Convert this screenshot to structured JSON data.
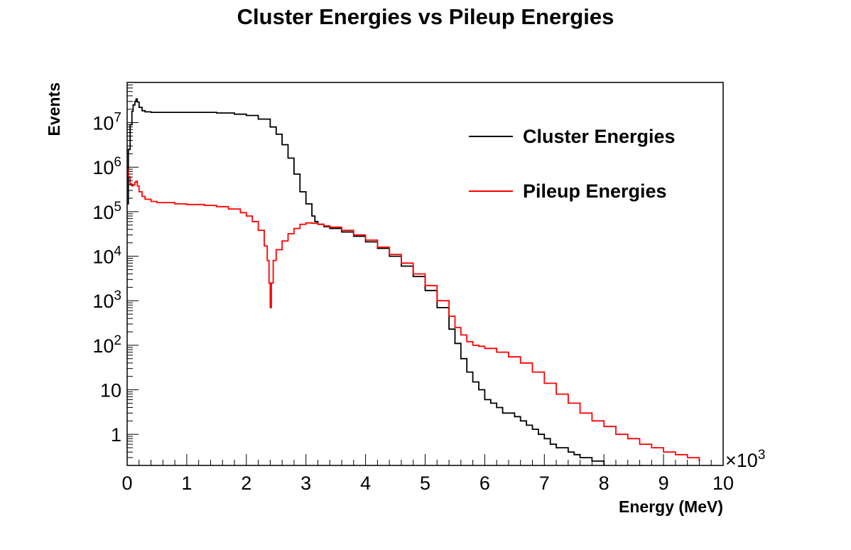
{
  "chart_data": {
    "type": "line",
    "title": "Cluster Energies vs Pileup Energies",
    "xlabel": "Energy (MeV)",
    "ylabel": "Events",
    "x_multiplier_label": "×10",
    "x_multiplier_exp": "3",
    "xlim": [
      0,
      10000
    ],
    "ylim": [
      0.2,
      80000000
    ],
    "yscale": "log",
    "grid": false,
    "legend_position": "top-right",
    "x_ticks": [
      {
        "value": 0,
        "label": "0"
      },
      {
        "value": 1000,
        "label": "1"
      },
      {
        "value": 2000,
        "label": "2"
      },
      {
        "value": 3000,
        "label": "3"
      },
      {
        "value": 4000,
        "label": "4"
      },
      {
        "value": 5000,
        "label": "5"
      },
      {
        "value": 6000,
        "label": "6"
      },
      {
        "value": 7000,
        "label": "7"
      },
      {
        "value": 8000,
        "label": "8"
      },
      {
        "value": 9000,
        "label": "9"
      },
      {
        "value": 10000,
        "label": "10"
      }
    ],
    "y_ticks": [
      {
        "value": 1,
        "base": "1",
        "exp": ""
      },
      {
        "value": 10,
        "base": "10",
        "exp": ""
      },
      {
        "value": 100,
        "base": "10",
        "exp": "2"
      },
      {
        "value": 1000,
        "base": "10",
        "exp": "3"
      },
      {
        "value": 10000,
        "base": "10",
        "exp": "4"
      },
      {
        "value": 100000,
        "base": "10",
        "exp": "5"
      },
      {
        "value": 1000000,
        "base": "10",
        "exp": "6"
      },
      {
        "value": 10000000,
        "base": "10",
        "exp": "7"
      }
    ],
    "series": [
      {
        "name": "Cluster Energies",
        "color": "#000000",
        "x": [
          0,
          20,
          50,
          80,
          100,
          130,
          150,
          170,
          200,
          250,
          300,
          400,
          500,
          800,
          1000,
          1500,
          1800,
          2000,
          2200,
          2400,
          2500,
          2600,
          2700,
          2800,
          2900,
          3000,
          3100,
          3150,
          3200,
          3300,
          3400,
          3600,
          3800,
          4000,
          4200,
          4400,
          4600,
          4800,
          5000,
          5200,
          5400,
          5500,
          5600,
          5700,
          5800,
          5900,
          6000,
          6100,
          6200,
          6300,
          6400,
          6500,
          6600,
          6700,
          6800,
          6900,
          7000,
          7100,
          7200,
          7300,
          7400,
          7500,
          7600,
          7700,
          7800,
          7900,
          8000
        ],
        "y": [
          150000,
          2500000,
          9000000,
          18000000,
          25000000,
          30000000,
          34000000,
          29000000,
          22000000,
          18500000,
          17500000,
          17000000,
          17000000,
          17000000,
          17000000,
          16500000,
          15500000,
          14500000,
          12000000,
          8000000,
          5500000,
          3200000,
          1600000,
          700000,
          280000,
          150000,
          80000,
          60000,
          52000,
          46000,
          42000,
          35000,
          28000,
          21000,
          15000,
          10000,
          6000,
          3500,
          1700,
          700,
          230,
          110,
          50,
          25,
          15,
          10,
          6,
          5,
          4,
          3,
          3,
          2.5,
          2,
          1.6,
          1.3,
          1,
          0.8,
          0.6,
          0.5,
          0.5,
          0.4,
          0.35,
          0.3,
          0.3,
          0.25,
          0.25,
          0.2
        ]
      },
      {
        "name": "Pileup Energies",
        "color": "#ff0000",
        "x": [
          0,
          20,
          50,
          80,
          100,
          130,
          150,
          170,
          200,
          250,
          300,
          400,
          500,
          800,
          1000,
          1300,
          1500,
          1700,
          1900,
          2000,
          2100,
          2200,
          2300,
          2350,
          2380,
          2400,
          2420,
          2450,
          2500,
          2600,
          2700,
          2800,
          2900,
          3000,
          3100,
          3200,
          3300,
          3400,
          3600,
          3800,
          4000,
          4200,
          4400,
          4600,
          4800,
          5000,
          5200,
          5400,
          5500,
          5600,
          5700,
          5800,
          5900,
          6000,
          6200,
          6400,
          6600,
          6800,
          7000,
          7200,
          7400,
          7600,
          7800,
          8000,
          8200,
          8400,
          8600,
          8800,
          9000,
          9200,
          9400,
          9600
        ],
        "y": [
          900000,
          600000,
          420000,
          380000,
          400000,
          460000,
          480000,
          380000,
          280000,
          220000,
          190000,
          170000,
          160000,
          150000,
          145000,
          138000,
          130000,
          115000,
          95000,
          80000,
          60000,
          38000,
          17000,
          8000,
          2500,
          700,
          2500,
          8000,
          14000,
          22000,
          32000,
          42000,
          52000,
          56000,
          55000,
          52000,
          48000,
          45000,
          38000,
          30000,
          23000,
          16000,
          11000,
          7000,
          4000,
          2200,
          1000,
          450,
          250,
          170,
          120,
          100,
          95,
          85,
          70,
          55,
          40,
          25,
          14,
          8,
          5,
          3,
          2,
          1.5,
          1,
          0.8,
          0.6,
          0.5,
          0.4,
          0.35,
          0.3,
          0.25
        ]
      }
    ]
  }
}
